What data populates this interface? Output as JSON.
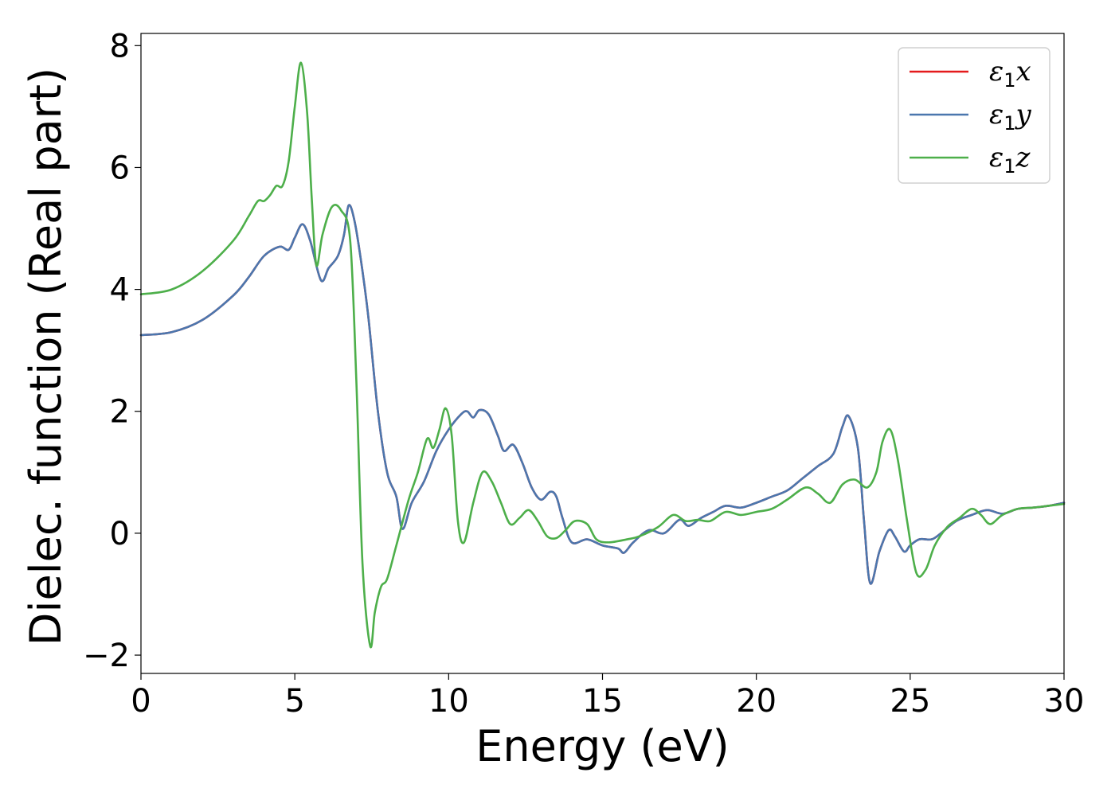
{
  "chart_data": {
    "type": "line",
    "title": "",
    "xlabel": "Energy (eV)",
    "ylabel": "Dielec. function (Real part)",
    "xlim": [
      0,
      30
    ],
    "ylim": [
      -2.3,
      8.2
    ],
    "xticks": [
      0,
      5,
      10,
      15,
      20,
      25,
      30
    ],
    "yticks": [
      -2,
      0,
      2,
      4,
      6,
      8
    ],
    "ytick_labels": [
      "−2",
      "0",
      "2",
      "4",
      "6",
      "8"
    ],
    "grid": false,
    "legend_position": "top-right",
    "series": [
      {
        "name_symbol": "ε",
        "name_sub": "1",
        "name_suffix": "x",
        "color": "#e41a1c",
        "x": [
          0,
          1,
          2,
          3,
          3.5,
          4,
          4.5,
          4.8,
          5.0,
          5.25,
          5.5,
          5.85,
          6.1,
          6.4,
          6.6,
          6.75,
          6.95,
          7.2,
          7.4,
          7.7,
          8.0,
          8.3,
          8.5,
          8.8,
          9.2,
          9.6,
          10.0,
          10.4,
          10.6,
          10.8,
          11.0,
          11.3,
          11.6,
          11.8,
          12.1,
          12.4,
          12.7,
          13.0,
          13.3,
          13.5,
          13.7,
          14.0,
          14.5,
          15.0,
          15.5,
          15.7,
          16.0,
          16.5,
          17.0,
          17.5,
          17.8,
          18.2,
          18.6,
          19.0,
          19.5,
          20.0,
          20.5,
          21.0,
          21.5,
          22.0,
          22.5,
          22.8,
          23.0,
          23.3,
          23.5,
          23.7,
          24.0,
          24.3,
          24.5,
          24.8,
          25.0,
          25.3,
          25.7,
          26.0,
          26.5,
          27.0,
          27.5,
          28.0,
          28.5,
          29.0,
          29.5,
          30.0
        ],
        "y": [
          3.25,
          3.3,
          3.5,
          3.9,
          4.2,
          4.55,
          4.7,
          4.65,
          4.85,
          5.07,
          4.8,
          4.15,
          4.35,
          4.55,
          4.9,
          5.38,
          5.1,
          4.3,
          3.5,
          2.0,
          1.0,
          0.6,
          0.07,
          0.5,
          0.85,
          1.35,
          1.7,
          1.95,
          2.0,
          1.9,
          2.02,
          1.95,
          1.6,
          1.35,
          1.45,
          1.15,
          0.75,
          0.55,
          0.68,
          0.6,
          0.25,
          -0.15,
          -0.1,
          -0.2,
          -0.25,
          -0.32,
          -0.15,
          0.05,
          0.0,
          0.22,
          0.12,
          0.25,
          0.35,
          0.45,
          0.42,
          0.5,
          0.6,
          0.7,
          0.9,
          1.1,
          1.3,
          1.75,
          1.92,
          1.4,
          0.2,
          -0.82,
          -0.3,
          0.05,
          -0.05,
          -0.3,
          -0.2,
          -0.1,
          -0.1,
          0.0,
          0.2,
          0.3,
          0.38,
          0.32,
          0.4,
          0.42,
          0.45,
          0.5
        ]
      },
      {
        "name_symbol": "ε",
        "name_sub": "1",
        "name_suffix": "y",
        "color": "#4b77ae",
        "x": [
          0,
          1,
          2,
          3,
          3.5,
          4,
          4.5,
          4.8,
          5.0,
          5.25,
          5.5,
          5.85,
          6.1,
          6.4,
          6.6,
          6.75,
          6.95,
          7.2,
          7.4,
          7.7,
          8.0,
          8.3,
          8.5,
          8.8,
          9.2,
          9.6,
          10.0,
          10.4,
          10.6,
          10.8,
          11.0,
          11.3,
          11.6,
          11.8,
          12.1,
          12.4,
          12.7,
          13.0,
          13.3,
          13.5,
          13.7,
          14.0,
          14.5,
          15.0,
          15.5,
          15.7,
          16.0,
          16.5,
          17.0,
          17.5,
          17.8,
          18.2,
          18.6,
          19.0,
          19.5,
          20.0,
          20.5,
          21.0,
          21.5,
          22.0,
          22.5,
          22.8,
          23.0,
          23.3,
          23.5,
          23.7,
          24.0,
          24.3,
          24.5,
          24.8,
          25.0,
          25.3,
          25.7,
          26.0,
          26.5,
          27.0,
          27.5,
          28.0,
          28.5,
          29.0,
          29.5,
          30.0
        ],
        "y": [
          3.25,
          3.3,
          3.5,
          3.9,
          4.2,
          4.55,
          4.7,
          4.65,
          4.85,
          5.07,
          4.8,
          4.15,
          4.35,
          4.55,
          4.9,
          5.38,
          5.1,
          4.3,
          3.5,
          2.0,
          1.0,
          0.6,
          0.07,
          0.5,
          0.85,
          1.35,
          1.7,
          1.95,
          2.0,
          1.9,
          2.02,
          1.95,
          1.6,
          1.35,
          1.45,
          1.15,
          0.75,
          0.55,
          0.68,
          0.6,
          0.25,
          -0.15,
          -0.1,
          -0.2,
          -0.25,
          -0.32,
          -0.15,
          0.05,
          0.0,
          0.22,
          0.12,
          0.25,
          0.35,
          0.45,
          0.42,
          0.5,
          0.6,
          0.7,
          0.9,
          1.1,
          1.3,
          1.75,
          1.92,
          1.4,
          0.2,
          -0.82,
          -0.3,
          0.05,
          -0.05,
          -0.3,
          -0.2,
          -0.1,
          -0.1,
          0.0,
          0.2,
          0.3,
          0.38,
          0.32,
          0.4,
          0.42,
          0.45,
          0.5
        ]
      },
      {
        "name_symbol": "ε",
        "name_sub": "1",
        "name_suffix": "z",
        "color": "#4daf4a",
        "x": [
          0,
          1,
          2,
          3,
          3.5,
          3.8,
          4.0,
          4.2,
          4.4,
          4.6,
          4.8,
          5.0,
          5.2,
          5.4,
          5.55,
          5.7,
          5.9,
          6.2,
          6.5,
          6.8,
          7.0,
          7.2,
          7.45,
          7.6,
          7.8,
          8.0,
          8.3,
          8.7,
          9.0,
          9.3,
          9.5,
          9.7,
          9.9,
          10.1,
          10.3,
          10.5,
          10.8,
          11.1,
          11.4,
          11.7,
          12.0,
          12.3,
          12.6,
          12.9,
          13.2,
          13.5,
          13.8,
          14.1,
          14.5,
          14.8,
          15.2,
          15.8,
          16.2,
          16.8,
          17.3,
          17.7,
          18.1,
          18.5,
          19.0,
          19.5,
          20.0,
          20.5,
          21.0,
          21.6,
          22.0,
          22.4,
          22.8,
          23.2,
          23.6,
          23.9,
          24.1,
          24.35,
          24.6,
          24.9,
          25.2,
          25.5,
          25.8,
          26.2,
          26.6,
          27.0,
          27.3,
          27.6,
          28.0,
          28.5,
          29.0,
          29.5,
          30.0
        ],
        "y": [
          3.92,
          4.0,
          4.3,
          4.8,
          5.2,
          5.45,
          5.45,
          5.55,
          5.7,
          5.7,
          6.1,
          7.0,
          7.72,
          6.9,
          5.5,
          4.4,
          4.9,
          5.35,
          5.3,
          4.8,
          2.5,
          -0.5,
          -1.85,
          -1.3,
          -0.88,
          -0.75,
          -0.2,
          0.55,
          1.0,
          1.55,
          1.4,
          1.7,
          2.05,
          1.6,
          0.2,
          -0.15,
          0.5,
          1.0,
          0.85,
          0.5,
          0.15,
          0.25,
          0.38,
          0.2,
          -0.05,
          -0.08,
          0.05,
          0.2,
          0.15,
          -0.1,
          -0.15,
          -0.1,
          -0.05,
          0.1,
          0.3,
          0.2,
          0.22,
          0.2,
          0.35,
          0.3,
          0.35,
          0.4,
          0.55,
          0.75,
          0.65,
          0.5,
          0.8,
          0.88,
          0.75,
          1.0,
          1.5,
          1.7,
          1.2,
          0.2,
          -0.65,
          -0.6,
          -0.2,
          0.1,
          0.25,
          0.4,
          0.3,
          0.15,
          0.3,
          0.4,
          0.42,
          0.45,
          0.48
        ]
      }
    ]
  }
}
